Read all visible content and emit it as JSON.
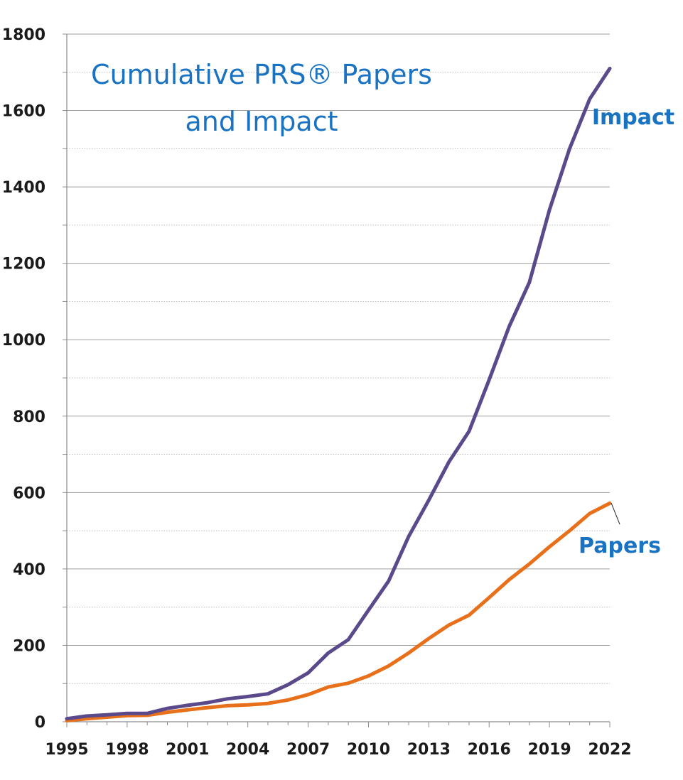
{
  "chart_data": {
    "type": "line",
    "title_lines": [
      "Cumulative PRS® Papers",
      "and Impact"
    ],
    "xlabel": "",
    "ylabel": "",
    "x": [
      1995,
      1996,
      1997,
      1998,
      1999,
      2000,
      2001,
      2002,
      2003,
      2004,
      2005,
      2006,
      2007,
      2008,
      2009,
      2010,
      2011,
      2012,
      2013,
      2014,
      2015,
      2016,
      2017,
      2018,
      2019,
      2020,
      2021,
      2022
    ],
    "xlim": [
      1995,
      2022
    ],
    "ylim": [
      0,
      1800
    ],
    "x_ticks": [
      "1995",
      "1998",
      "2001",
      "2004",
      "2007",
      "2010",
      "2013",
      "2016",
      "2019",
      "2022"
    ],
    "y_ticks": [
      "0",
      "200",
      "400",
      "600",
      "800",
      "1000",
      "1200",
      "1400",
      "1600",
      "1800"
    ],
    "grid": {
      "major": true,
      "minor_dotted": true
    },
    "legend": "direct labels at line ends",
    "series": [
      {
        "name": "Impact",
        "color": "#5b4a8b",
        "values": [
          8,
          15,
          18,
          22,
          22,
          35,
          43,
          50,
          60,
          66,
          73,
          97,
          128,
          180,
          215,
          292,
          368,
          485,
          580,
          680,
          760,
          895,
          1035,
          1150,
          1340,
          1500,
          1630,
          1710
        ]
      },
      {
        "name": "Papers",
        "color": "#e8701a",
        "values": [
          3,
          8,
          12,
          16,
          17,
          25,
          31,
          37,
          42,
          44,
          48,
          57,
          71,
          91,
          101,
          120,
          146,
          180,
          218,
          253,
          279,
          325,
          372,
          413,
          458,
          500,
          545,
          572
        ]
      }
    ]
  }
}
